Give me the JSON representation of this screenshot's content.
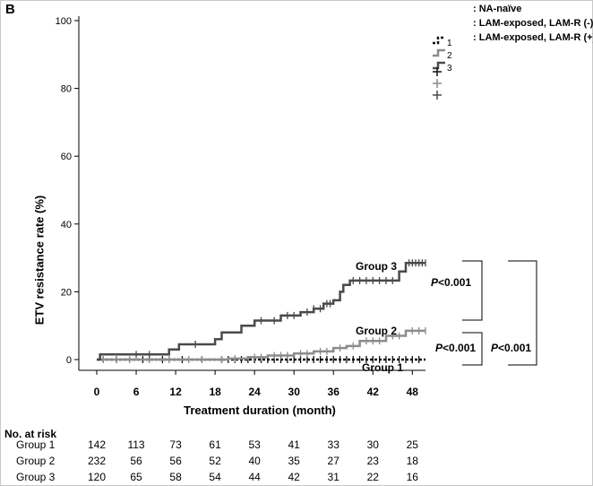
{
  "panel_letter": "B",
  "chart_data": {
    "type": "line",
    "title": "",
    "xlabel": "Treatment duration (month)",
    "ylabel": "ETV resistance rate (%)",
    "xlim": [
      0,
      50
    ],
    "ylim": [
      0,
      100
    ],
    "x_ticks": [
      0,
      6,
      12,
      18,
      24,
      30,
      36,
      42,
      48
    ],
    "y_ticks": [
      0,
      20,
      40,
      60,
      80,
      100
    ],
    "legend": {
      "placement": "top-right",
      "entries": [
        {
          "key": "1",
          "label": ": NA-naïve"
        },
        {
          "key": "2",
          "label": ": LAM-exposed, LAM-R (-)"
        },
        {
          "key": "3",
          "label": ": LAM-exposed, LAM-R (+)"
        }
      ]
    },
    "series": [
      {
        "name": "Group 1",
        "color": "#111111",
        "dash": true,
        "steps": [
          [
            0,
            0
          ],
          [
            50,
            0
          ]
        ],
        "censor": [
          1,
          3,
          7,
          10,
          13,
          16,
          19,
          20,
          21,
          22,
          23,
          24,
          25,
          26,
          27,
          28,
          29,
          30,
          31,
          32,
          33,
          34,
          35,
          36,
          37,
          38,
          39,
          40,
          41,
          42,
          43,
          44,
          45,
          46,
          47,
          48,
          49
        ]
      },
      {
        "name": "Group 2",
        "color": "#8c8c8c",
        "dash": false,
        "steps": [
          [
            0,
            0
          ],
          [
            20,
            0.3
          ],
          [
            23,
            0.7
          ],
          [
            26,
            1.2
          ],
          [
            30,
            1.8
          ],
          [
            33,
            2.4
          ],
          [
            36,
            3.4
          ],
          [
            38,
            4.0
          ],
          [
            40,
            5.5
          ],
          [
            44,
            7.0
          ],
          [
            47,
            8.5
          ],
          [
            50,
            8.5
          ]
        ],
        "censor": [
          1,
          3,
          5,
          8,
          11,
          14,
          16,
          19,
          21,
          24,
          25,
          27,
          28,
          29,
          31,
          32,
          34,
          35,
          37,
          39,
          41,
          42,
          43,
          45,
          46,
          48,
          49,
          50
        ]
      },
      {
        "name": "Group 3",
        "color": "#4a4a4a",
        "dash": false,
        "steps": [
          [
            0,
            0
          ],
          [
            0.5,
            1.5
          ],
          [
            11,
            3
          ],
          [
            12.5,
            4.5
          ],
          [
            18,
            6
          ],
          [
            19,
            8
          ],
          [
            22,
            10
          ],
          [
            24,
            11.5
          ],
          [
            28,
            13
          ],
          [
            31,
            14
          ],
          [
            33,
            15
          ],
          [
            34.5,
            16.5
          ],
          [
            36,
            17.5
          ],
          [
            37,
            20
          ],
          [
            37.5,
            22
          ],
          [
            38.5,
            23.3
          ],
          [
            46,
            26
          ],
          [
            47,
            28.5
          ],
          [
            50,
            28.5
          ]
        ],
        "censor": [
          6,
          8,
          15,
          25,
          27,
          29,
          30,
          32,
          33,
          34,
          35,
          35.5,
          39,
          40,
          41,
          42,
          43,
          44,
          45,
          47.5,
          48,
          48.5,
          49,
          49.5,
          50
        ]
      }
    ],
    "annotations": [
      {
        "text": "Group 3",
        "x": 36,
        "y": 28.5
      },
      {
        "text": "Group 2",
        "x": 37,
        "y": 8.5
      },
      {
        "text": "Group 1",
        "x": 40,
        "y": -2.5
      }
    ],
    "comparisons": [
      {
        "groups": "Group 3 vs Group 2",
        "p_value": "<0.001"
      },
      {
        "groups": "Group 2 vs Group 1",
        "p_value": "<0.001"
      },
      {
        "groups": "Group 3 vs Group 1",
        "p_value": "<0.001"
      }
    ]
  },
  "pvalues": [
    {
      "prefix": "P",
      "value": "<0.001"
    },
    {
      "prefix": "P",
      "value": "<0.001"
    },
    {
      "prefix": "P",
      "value": "<0.001"
    }
  ],
  "risk_table": {
    "title": "No. at risk",
    "months": [
      0,
      6,
      12,
      18,
      24,
      30,
      36,
      42,
      48
    ],
    "rows": [
      {
        "name": "Group 1",
        "values": [
          "142",
          "113",
          "73",
          "61",
          "53",
          "41",
          "33",
          "30",
          "25"
        ]
      },
      {
        "name": "Group 2",
        "values": [
          "232",
          "56",
          "56",
          "52",
          "40",
          "35",
          "27",
          "23",
          "18"
        ]
      },
      {
        "name": "Group 3",
        "values": [
          "120",
          "65",
          "58",
          "54",
          "44",
          "42",
          "31",
          "22",
          "16"
        ]
      }
    ]
  }
}
